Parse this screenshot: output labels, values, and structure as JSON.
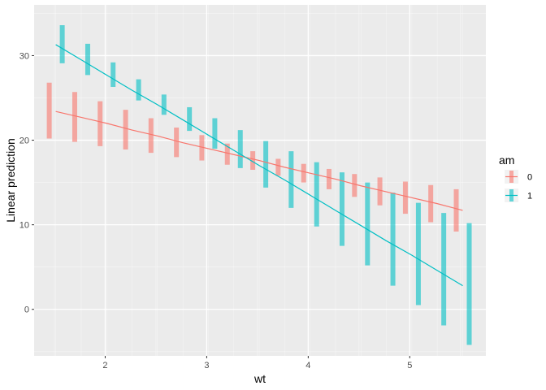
{
  "chart_data": {
    "type": "line",
    "xlabel": "wt",
    "ylabel": "Linear prediction",
    "xlim": [
      1.3,
      5.75
    ],
    "ylim": [
      -5.5,
      36
    ],
    "x_ticks": [
      2,
      3,
      4,
      5
    ],
    "y_ticks": [
      0,
      10,
      20,
      30
    ],
    "grid": true,
    "legend": {
      "title": "am",
      "position": "right"
    },
    "x": [
      1.513,
      1.764,
      2.014,
      2.265,
      2.515,
      2.766,
      3.016,
      3.267,
      3.518,
      3.768,
      4.019,
      4.269,
      4.52,
      4.77,
      5.021,
      5.271,
      5.522
    ],
    "series": [
      {
        "name": "0",
        "color": "#F8766D",
        "fit": [
          23.4,
          22.7,
          22.0,
          21.2,
          20.5,
          19.7,
          19.0,
          18.3,
          17.6,
          16.8,
          16.1,
          15.4,
          14.6,
          13.9,
          13.2,
          12.5,
          11.7
        ],
        "lower": [
          20.2,
          19.8,
          19.3,
          18.9,
          18.5,
          18.0,
          17.6,
          17.1,
          16.5,
          15.8,
          15.0,
          14.2,
          13.3,
          12.3,
          11.3,
          10.3,
          9.2
        ],
        "upper": [
          26.8,
          25.7,
          24.6,
          23.6,
          22.6,
          21.5,
          20.6,
          19.6,
          18.7,
          17.8,
          17.2,
          16.6,
          16.0,
          15.6,
          15.1,
          14.7,
          14.2
        ]
      },
      {
        "name": "1",
        "color": "#00BFC4",
        "fit": [
          31.3,
          29.5,
          27.7,
          25.9,
          24.2,
          22.4,
          20.6,
          18.8,
          17.0,
          15.3,
          13.5,
          11.7,
          9.9,
          8.1,
          6.4,
          4.6,
          2.8
        ],
        "lower": [
          29.1,
          27.7,
          26.3,
          24.7,
          23.0,
          21.1,
          19.0,
          16.7,
          14.4,
          12.0,
          9.8,
          7.5,
          5.2,
          2.8,
          0.5,
          -1.9,
          -4.2
        ],
        "upper": [
          33.6,
          31.4,
          29.2,
          27.2,
          25.4,
          23.9,
          22.6,
          21.2,
          19.9,
          18.7,
          17.4,
          16.2,
          15.0,
          13.8,
          12.6,
          11.4,
          10.2
        ]
      }
    ]
  }
}
